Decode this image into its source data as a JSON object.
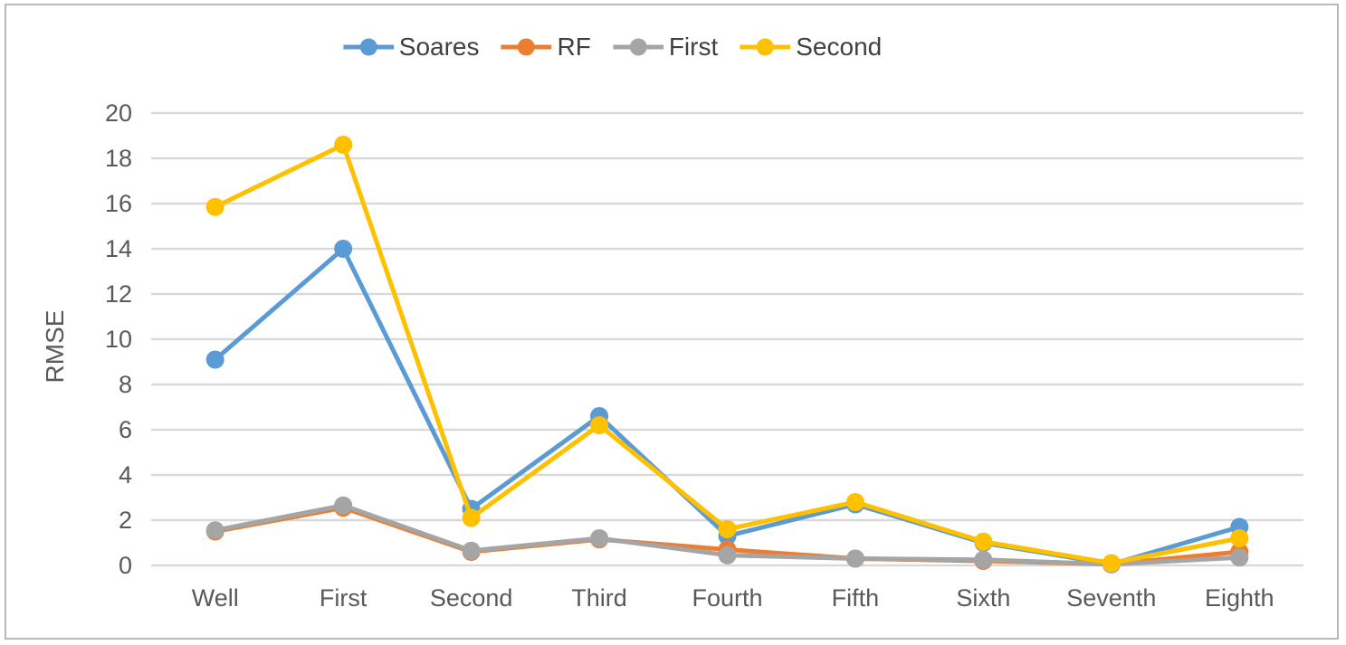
{
  "chart_data": {
    "type": "line",
    "title": "",
    "xlabel": "",
    "ylabel": "RMSE",
    "categories": [
      "Well",
      "First",
      "Second",
      "Third",
      "Fourth",
      "Fifth",
      "Sixth",
      "Seventh",
      "Eighth"
    ],
    "series": [
      {
        "name": "Soares",
        "color": "#5B9BD5",
        "values": [
          9.1,
          14.0,
          2.5,
          6.6,
          1.3,
          2.7,
          1.0,
          0.05,
          1.7
        ]
      },
      {
        "name": "RF",
        "color": "#ED7D31",
        "values": [
          1.5,
          2.55,
          0.6,
          1.15,
          0.7,
          0.3,
          0.2,
          0.05,
          0.6
        ]
      },
      {
        "name": "First",
        "color": "#A5A5A5",
        "values": [
          1.55,
          2.65,
          0.65,
          1.2,
          0.45,
          0.3,
          0.25,
          0.05,
          0.35
        ]
      },
      {
        "name": "Second",
        "color": "#FFC000",
        "values": [
          15.85,
          18.6,
          2.1,
          6.2,
          1.6,
          2.8,
          1.05,
          0.1,
          1.2
        ]
      }
    ],
    "ylim": [
      0,
      20
    ],
    "ytick_step": 2,
    "ytick_labels": [
      "0",
      "2",
      "4",
      "6",
      "8",
      "10",
      "12",
      "14",
      "16",
      "18",
      "20"
    ],
    "grid": true,
    "gridline_color": "#D9D9D9",
    "axis_text_color": "#595959",
    "legend_position": "top-center",
    "legend_entries": [
      "Soares",
      "RF",
      "First",
      "Second"
    ]
  }
}
